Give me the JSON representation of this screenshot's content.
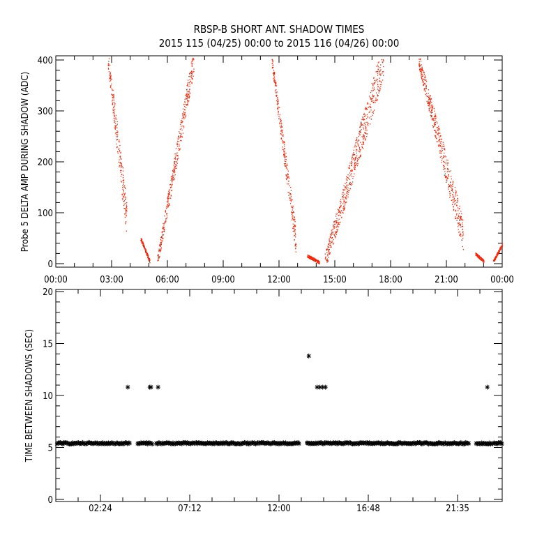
{
  "chart_data": [
    {
      "type": "scatter",
      "title": "RBSP-B SHORT ANT. SHADOW TIMES",
      "subtitle": "2015 115 (04/25) 00:00 to 2015 116 (04/26) 00:00",
      "xlabel": "",
      "ylabel": "Probe 5 DELTA AMP DURING SHADOW (ADC)",
      "xlim_hours": [
        0,
        24
      ],
      "ylim": [
        0,
        400
      ],
      "x_ticks": [
        "00:00",
        "03:00",
        "06:00",
        "09:00",
        "12:00",
        "15:00",
        "18:00",
        "21:00",
        "00:00"
      ],
      "x_tick_hours": [
        0,
        3,
        6,
        9,
        12,
        15,
        18,
        21,
        24
      ],
      "y_ticks": [
        0,
        100,
        200,
        300,
        400
      ],
      "color": "#ff2200",
      "branches": [
        {
          "t": [
            2.8,
            3.8
          ],
          "adc": [
            400,
            90
          ],
          "spread": 25
        },
        {
          "t": [
            4.55,
            5.05
          ],
          "adc": [
            50,
            4
          ],
          "spread": 5
        },
        {
          "t": [
            5.45,
            7.4
          ],
          "adc": [
            5,
            400
          ],
          "spread": 18
        },
        {
          "t": [
            11.6,
            12.9
          ],
          "adc": [
            400,
            45
          ],
          "spread": 18
        },
        {
          "t": [
            13.5,
            14.15
          ],
          "adc": [
            16,
            3
          ],
          "spread": 4
        },
        {
          "t": [
            14.45,
            17.6
          ],
          "adc": [
            2,
            400
          ],
          "spread": 25
        },
        {
          "t": [
            19.5,
            21.9
          ],
          "adc": [
            400,
            55
          ],
          "spread": 22
        },
        {
          "t": [
            22.55,
            23.0
          ],
          "adc": [
            20,
            5
          ],
          "spread": 4
        },
        {
          "t": [
            23.5,
            24.0
          ],
          "adc": [
            4,
            38
          ],
          "spread": 4
        }
      ]
    },
    {
      "type": "scatter",
      "title": "",
      "xlabel": "",
      "ylabel": "TIME BETWEEN SHADOWS (SEC)",
      "xlim_hours": [
        0,
        24
      ],
      "ylim": [
        0,
        20
      ],
      "x_ticks": [
        "02:24",
        "07:12",
        "12:00",
        "16:48",
        "21:35"
      ],
      "x_tick_hours": [
        2.4,
        7.2,
        12,
        16.8,
        21.6
      ],
      "y_ticks": [
        0,
        5,
        10,
        15,
        20
      ],
      "marker": "asterisk",
      "color": "#000000",
      "baseline_value": 5.4,
      "baseline_segments_hours": [
        [
          0.07,
          4.0
        ],
        [
          4.4,
          5.2
        ],
        [
          5.4,
          13.1
        ],
        [
          13.5,
          22.2
        ],
        [
          22.6,
          23.4
        ],
        [
          23.5,
          24.0
        ]
      ],
      "outliers": [
        {
          "t": 3.87,
          "v": 10.8
        },
        {
          "t": 5.05,
          "v": 10.8
        },
        {
          "t": 5.12,
          "v": 10.8
        },
        {
          "t": 5.5,
          "v": 10.8
        },
        {
          "t": 13.6,
          "v": 13.8
        },
        {
          "t": 14.05,
          "v": 10.8
        },
        {
          "t": 14.2,
          "v": 10.8
        },
        {
          "t": 14.35,
          "v": 10.8
        },
        {
          "t": 14.5,
          "v": 10.8
        },
        {
          "t": 23.2,
          "v": 10.8
        }
      ]
    }
  ]
}
